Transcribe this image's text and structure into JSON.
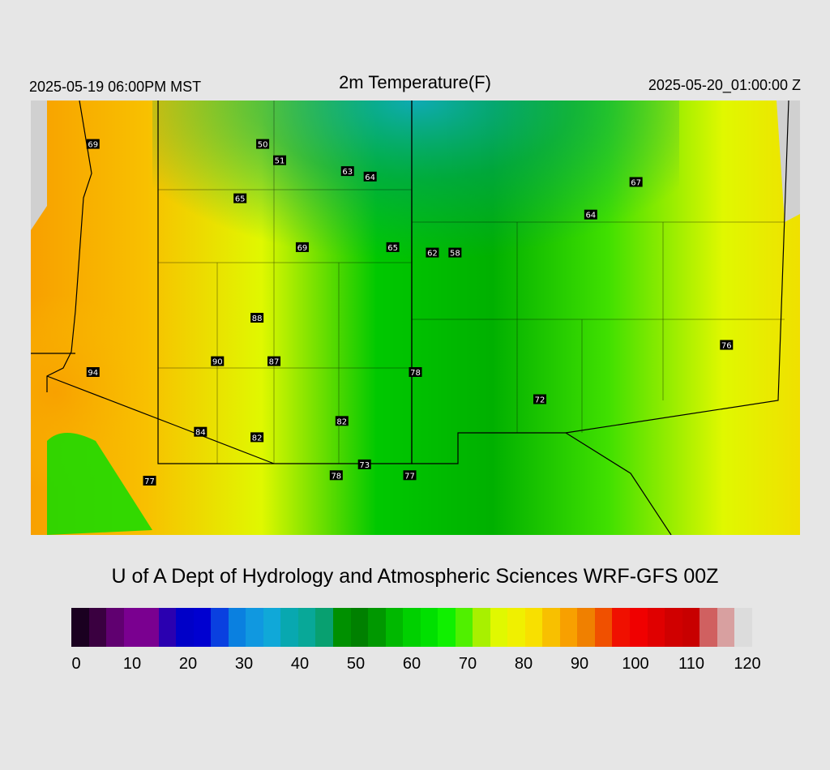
{
  "header": {
    "title": "2m Temperature(F)",
    "local_time": "2025-05-19 06:00PM MST",
    "utc_time": "2025-05-20_01:00:00 Z"
  },
  "credit": "U of A Dept of Hydrology and Atmospheric Sciences WRF-GFS 00Z",
  "colorbar": {
    "ticks": [
      "0",
      "10",
      "20",
      "30",
      "40",
      "50",
      "60",
      "70",
      "80",
      "90",
      "100",
      "110",
      "120"
    ],
    "min": 0,
    "max": 120,
    "colors": [
      "#1a0020",
      "#3a0040",
      "#600070",
      "#7a0090",
      "#7a0090",
      "#2a00b0",
      "#0000c8",
      "#0000d0",
      "#0a40e0",
      "#0a80e0",
      "#1098e0",
      "#10a8d8",
      "#08a8b0",
      "#08a898",
      "#08a070",
      "#009000",
      "#008000",
      "#009800",
      "#00b800",
      "#00d000",
      "#00e000",
      "#10f000",
      "#50f000",
      "#a8f000",
      "#e0f800",
      "#f0f000",
      "#f8e000",
      "#f8c000",
      "#f8a000",
      "#f08000",
      "#f05000",
      "#f01000",
      "#f00000",
      "#e00000",
      "#d00000",
      "#c80000",
      "#d06060",
      "#d8a0a0",
      "#dcdcdc"
    ]
  },
  "stations": [
    {
      "value": "69",
      "lon": -116.9,
      "lat": 42.8
    },
    {
      "value": "50",
      "lon": -113.9,
      "lat": 42.8
    },
    {
      "value": "51",
      "lon": -113.6,
      "lat": 42.5
    },
    {
      "value": "63",
      "lon": -112.4,
      "lat": 42.3
    },
    {
      "value": "64",
      "lon": -112.0,
      "lat": 42.2
    },
    {
      "value": "65",
      "lon": -114.3,
      "lat": 41.8
    },
    {
      "value": "69",
      "lon": -113.2,
      "lat": 40.9
    },
    {
      "value": "65",
      "lon": -111.6,
      "lat": 40.9
    },
    {
      "value": "62",
      "lon": -110.9,
      "lat": 40.8
    },
    {
      "value": "58",
      "lon": -110.5,
      "lat": 40.8
    },
    {
      "value": "67",
      "lon": -107.3,
      "lat": 42.1
    },
    {
      "value": "64",
      "lon": -108.1,
      "lat": 41.5
    },
    {
      "value": "88",
      "lon": -114.0,
      "lat": 39.6
    },
    {
      "value": "90",
      "lon": -114.7,
      "lat": 38.8
    },
    {
      "value": "87",
      "lon": -113.7,
      "lat": 38.8
    },
    {
      "value": "94",
      "lon": -116.9,
      "lat": 38.6
    },
    {
      "value": "78",
      "lon": -111.2,
      "lat": 38.6
    },
    {
      "value": "72",
      "lon": -109.0,
      "lat": 38.1
    },
    {
      "value": "76",
      "lon": -105.7,
      "lat": 39.1
    },
    {
      "value": "82",
      "lon": -112.5,
      "lat": 37.7
    },
    {
      "value": "84",
      "lon": -115.0,
      "lat": 37.5
    },
    {
      "value": "82",
      "lon": -114.0,
      "lat": 37.4
    },
    {
      "value": "73",
      "lon": -112.1,
      "lat": 36.9
    },
    {
      "value": "78",
      "lon": -112.6,
      "lat": 36.7
    },
    {
      "value": "77",
      "lon": -111.3,
      "lat": 36.7
    },
    {
      "value": "77",
      "lon": -115.9,
      "lat": 36.6
    }
  ]
}
